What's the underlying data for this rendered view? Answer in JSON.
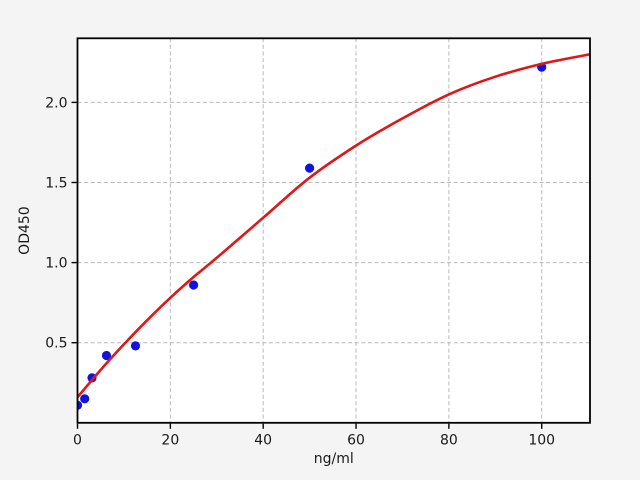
{
  "figure": {
    "kind": "elisa-standard-curve-plot",
    "background_color": "#f4f4f4",
    "plot_background_color": "#ffffff",
    "axis_color": "#000000",
    "grid_color": "#b9b9b9",
    "point_color": "#1212e0",
    "curve_color": "#e01717"
  },
  "chart_data": {
    "type": "scatter",
    "title": "",
    "xlabel": "ng/ml",
    "ylabel": "OD450",
    "xlim": [
      0,
      110.4
    ],
    "ylim": [
      0,
      2.4
    ],
    "grid": true,
    "legend": "none",
    "xticks": [
      {
        "v": 0,
        "label": "0"
      },
      {
        "v": 20,
        "label": "20"
      },
      {
        "v": 40,
        "label": "40"
      },
      {
        "v": 60,
        "label": "60"
      },
      {
        "v": 80,
        "label": "80"
      },
      {
        "v": 100,
        "label": "100"
      }
    ],
    "yticks": [
      {
        "v": 0.5,
        "label": "0.5"
      },
      {
        "v": 1.0,
        "label": "1.0"
      },
      {
        "v": 1.5,
        "label": "1.5"
      },
      {
        "v": 2.0,
        "label": "2.0"
      }
    ],
    "series": [
      {
        "name": "standard-points",
        "type": "scatter",
        "marker": "circle",
        "color": "#1212e0",
        "points": [
          [
            0,
            0.11
          ],
          [
            1.56,
            0.15
          ],
          [
            3.12,
            0.28
          ],
          [
            6.25,
            0.42
          ],
          [
            12.5,
            0.48
          ],
          [
            25,
            0.86
          ],
          [
            50,
            1.59
          ],
          [
            100,
            2.22
          ]
        ]
      },
      {
        "name": "fitted-curve",
        "type": "line",
        "color": "#e01717",
        "points": [
          [
            0,
            0.16
          ],
          [
            5,
            0.33
          ],
          [
            10,
            0.49
          ],
          [
            15,
            0.64
          ],
          [
            20,
            0.78
          ],
          [
            25,
            0.91
          ],
          [
            30,
            1.03
          ],
          [
            40,
            1.28
          ],
          [
            50,
            1.53
          ],
          [
            60,
            1.73
          ],
          [
            70,
            1.9
          ],
          [
            80,
            2.05
          ],
          [
            90,
            2.16
          ],
          [
            100,
            2.24
          ],
          [
            110.4,
            2.3
          ]
        ]
      }
    ]
  }
}
